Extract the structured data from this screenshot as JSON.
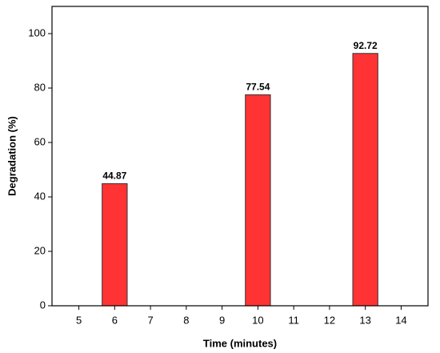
{
  "chart_data": {
    "type": "bar",
    "x": [
      6,
      10,
      13
    ],
    "values": [
      44.87,
      77.54,
      92.72
    ],
    "color": "#ff3333",
    "xlabel": "Time (minutes)",
    "ylabel": "Degradation (%)",
    "xlim": [
      4.25,
      14.75
    ],
    "xticks": [
      5,
      6,
      7,
      8,
      9,
      10,
      11,
      12,
      13,
      14
    ],
    "ylim": [
      0,
      110
    ],
    "yticks": [
      0,
      20,
      40,
      60,
      80,
      100
    ],
    "grid": false
  }
}
